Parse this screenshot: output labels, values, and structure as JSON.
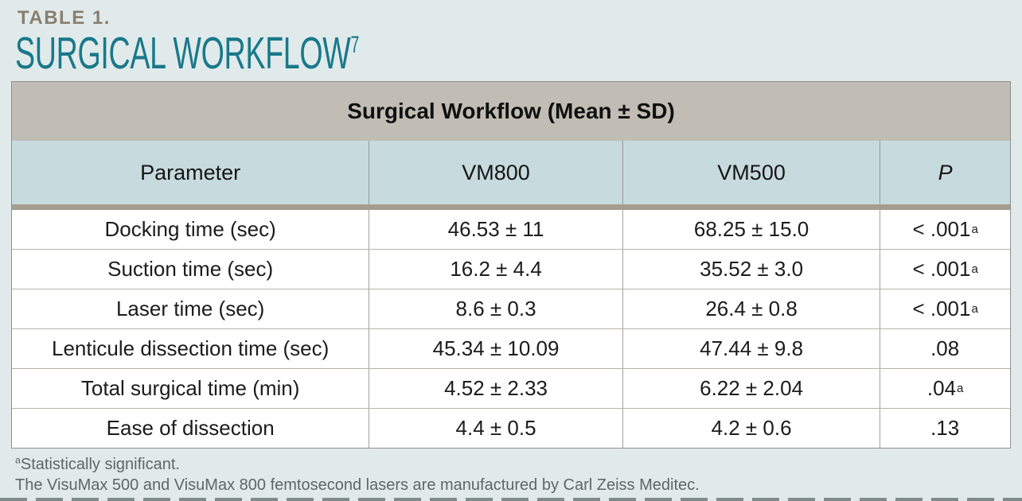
{
  "header": {
    "eyebrow": "TABLE 1.",
    "title": "SURGICAL WORKFLOW",
    "title_superscript": "7",
    "eyebrow_color": "#8a7f6f",
    "title_color": "#19798a"
  },
  "table": {
    "title": "Surgical Workflow (Mean ± SD)",
    "columns": [
      "Parameter",
      "VM800",
      "VM500",
      "P"
    ],
    "rows": [
      {
        "parameter": "Docking time (sec)",
        "vm800": "46.53 ± 11",
        "vm500": "68.25 ± 15.0",
        "p": "< .001",
        "p_sup": "a"
      },
      {
        "parameter": "Suction time (sec)",
        "vm800": "16.2 ± 4.4",
        "vm500": "35.52 ± 3.0",
        "p": "< .001",
        "p_sup": "a"
      },
      {
        "parameter": "Laser time (sec)",
        "vm800": "8.6 ± 0.3",
        "vm500": "26.4 ± 0.8",
        "p": "< .001",
        "p_sup": "a"
      },
      {
        "parameter": "Lenticule dissection time (sec)",
        "vm800": "45.34 ± 10.09",
        "vm500": "47.44 ± 9.8",
        "p": ".08",
        "p_sup": ""
      },
      {
        "parameter": "Total surgical time (min)",
        "vm800": "4.52 ± 2.33",
        "vm500": "6.22 ± 2.04",
        "p": ".04",
        "p_sup": "a"
      },
      {
        "parameter": "Ease of dissection",
        "vm800": "4.4 ± 0.5",
        "vm500": "4.2 ± 0.6",
        "p": ".13",
        "p_sup": ""
      }
    ],
    "title_band_color": "#c2bdb4",
    "column_header_color": "#c7dade",
    "divider_color": "#a49d8f"
  },
  "footnotes": {
    "note1_sup": "a",
    "note1": "Statistically significant.",
    "note2": "The VisuMax 500 and VisuMax 800 femtosecond lasers are manufactured by Carl Zeiss Meditec."
  },
  "page": {
    "background_color": "#e1eaeb"
  }
}
